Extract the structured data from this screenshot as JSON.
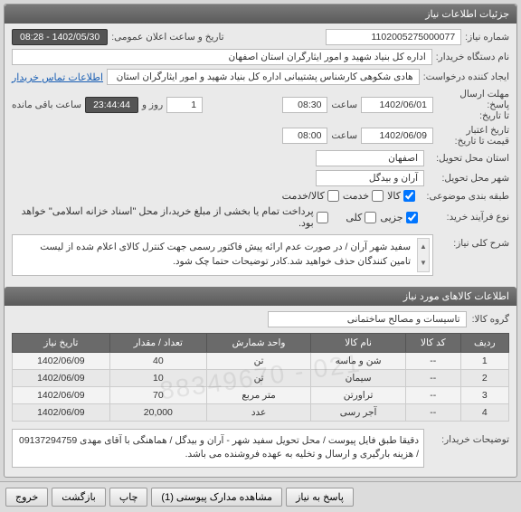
{
  "header": {
    "title": "جزئیات اطلاعات نیاز"
  },
  "fields": {
    "need_no_label": "شماره نیاز:",
    "need_no": "1102005275000077",
    "announce_label": "تاریخ و ساعت اعلان عمومی:",
    "announce": "1402/05/30 - 08:28",
    "buyer_label": "نام دستگاه خریدار:",
    "buyer": "اداره کل بنیاد شهید و امور ایثارگران استان اصفهان",
    "creator_label": "ایجاد کننده درخواست:",
    "creator": "هادی شکوهی کارشناس پشتیبانی اداره کل بنیاد شهید و امور ایثارگران استان",
    "contact_link": "اطلاعات تماس خریدار",
    "reply_deadline_label": "مهلت ارسال پاسخ:\nتا تاریخ:",
    "reply_date": "1402/06/01",
    "time_label": "ساعت",
    "reply_time": "08:30",
    "day_label": "روز و",
    "day_val": "1",
    "remain": "23:44:44",
    "remain_suffix": "ساعت باقی مانده",
    "valid_until_label": "تاریخ اعتبار\nقیمت تا تاریخ:",
    "valid_date": "1402/06/09",
    "valid_time": "08:00",
    "province_label": "استان محل تحویل:",
    "province": "اصفهان",
    "city_label": "شهر محل تحویل:",
    "city": "آران و بیدگل",
    "category_label": "طبقه بندی موضوعی:",
    "cat1": "کالا",
    "cat2": "خدمت",
    "cat3": "کالا/خدمت",
    "process_label": "نوع فرآیند خرید:",
    "proc1": "جزیی",
    "proc2": "کلی",
    "proc_note": "پرداخت تمام یا بخشی از مبلغ خرید،از محل \"اسناد خزانه اسلامی\" خواهد بود.",
    "overall_desc_label": "شرح کلی نیاز:",
    "overall_desc": "سفید شهر آران / در صورت عدم ارائه پیش فاکتور رسمی جهت کنترل کالای اعلام شده از لیست تامین کنندگان حذف خواهید شد.کادر توضیحات حتما چک شود."
  },
  "items_header": "اطلاعات کالاهای مورد نیاز",
  "group_label": "گروه کالا:",
  "group_value": "تاسیسات و مصالح ساختمانی",
  "cols": {
    "idx": "ردیف",
    "code": "کد کالا",
    "name": "نام کالا",
    "unit": "واحد شمارش",
    "qty": "تعداد / مقدار",
    "date": "تاریخ نیاز"
  },
  "rows": [
    {
      "idx": "1",
      "code": "--",
      "name": "شن و ماسه",
      "unit": "تن",
      "qty": "40",
      "date": "1402/06/09"
    },
    {
      "idx": "2",
      "code": "--",
      "name": "سیمان",
      "unit": "تن",
      "qty": "10",
      "date": "1402/06/09"
    },
    {
      "idx": "3",
      "code": "--",
      "name": "تراورتن",
      "unit": "متر مربع",
      "qty": "70",
      "date": "1402/06/09"
    },
    {
      "idx": "4",
      "code": "--",
      "name": "آجر رسی",
      "unit": "عدد",
      "qty": "20,000",
      "date": "1402/06/09"
    }
  ],
  "watermark": "021 - 88349670",
  "buyer_note_label": "توضیحات خریدار:",
  "buyer_note": "دقیقا طبق فایل پیوست / محل تحویل سفید شهر - آران و بیدگل / هماهنگی با آقای مهدی 09137294759 / هزینه بارگیری و ارسال و تخلیه به عهده فروشنده می باشد.",
  "buttons": {
    "reply": "پاسخ به نیاز",
    "attach": "مشاهده مدارک پیوستی (1)",
    "print": "چاپ",
    "back": "بازگشت",
    "exit": "خروج"
  }
}
